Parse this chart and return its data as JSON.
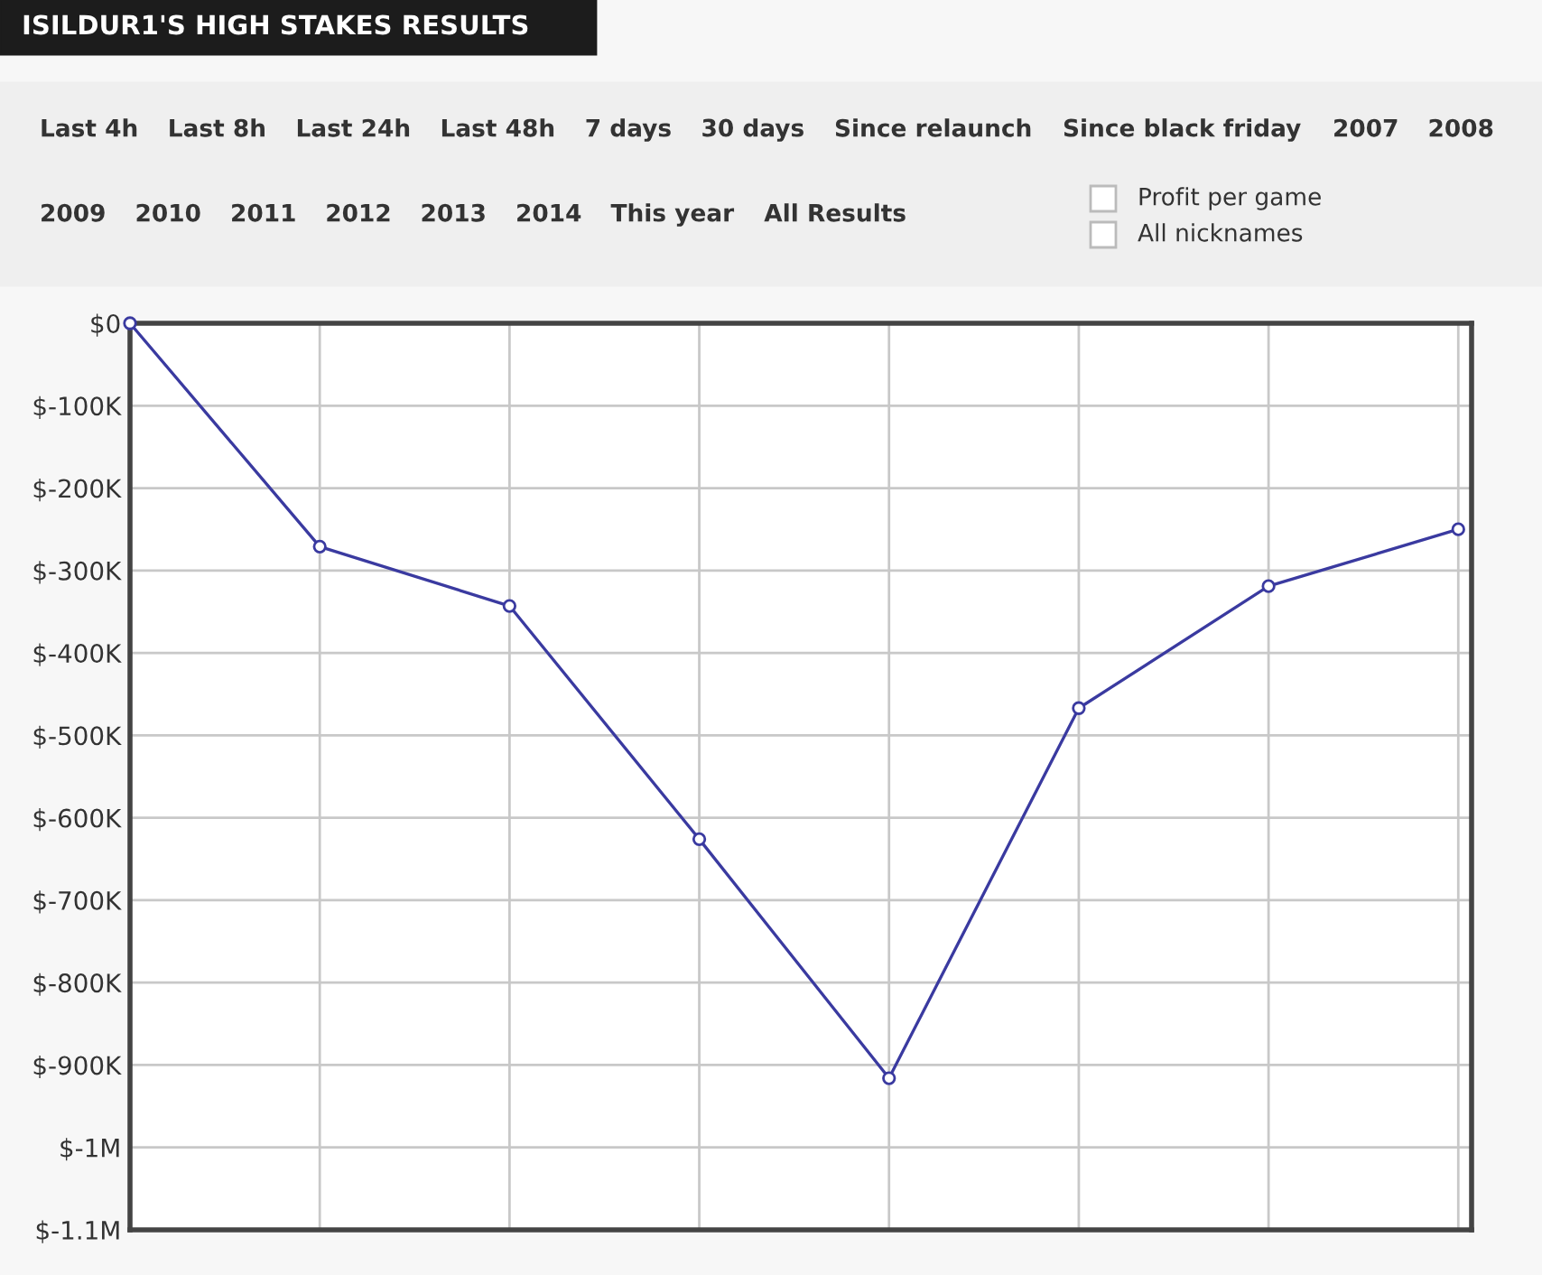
{
  "chart_data": {
    "type": "line",
    "title": "ISILDUR1'S HIGH STAKES RESULTS",
    "annotations": [
      "Last 4h",
      "Last 8h",
      "Last 24h",
      "Last 48h",
      "7 days",
      "30 days",
      "Since relaunch",
      "Since black friday",
      "2007",
      "2008",
      "2009",
      "2010",
      "2011",
      "2012",
      "2013",
      "2014",
      "This year",
      "All Results",
      "Profit per game",
      "All nicknames"
    ],
    "categories": [
      null,
      null,
      null,
      null,
      null,
      null,
      null,
      null
    ],
    "series": [
      {
        "color": "#3a3aa0",
        "values": [
          0,
          -271000,
          -343000,
          -626000,
          -916000,
          -467000,
          -319000,
          -250000
        ]
      }
    ],
    "ylim": [
      -1100000,
      0
    ],
    "yticks": [
      {
        "value": 0,
        "label": "$0"
      },
      {
        "value": -100000,
        "label": "$-100K"
      },
      {
        "value": -200000,
        "label": "$-200K"
      },
      {
        "value": -300000,
        "label": "$-300K"
      },
      {
        "value": -400000,
        "label": "$-400K"
      },
      {
        "value": -500000,
        "label": "$-500K"
      },
      {
        "value": -600000,
        "label": "$-600K"
      },
      {
        "value": -700000,
        "label": "$-700K"
      },
      {
        "value": -800000,
        "label": "$-800K"
      },
      {
        "value": -900000,
        "label": "$-900K"
      },
      {
        "value": -1000000,
        "label": "$-1M"
      },
      {
        "value": -1100000,
        "label": "$-1.1M"
      }
    ],
    "grid": true,
    "marker": "circle",
    "line_style": "solid"
  }
}
